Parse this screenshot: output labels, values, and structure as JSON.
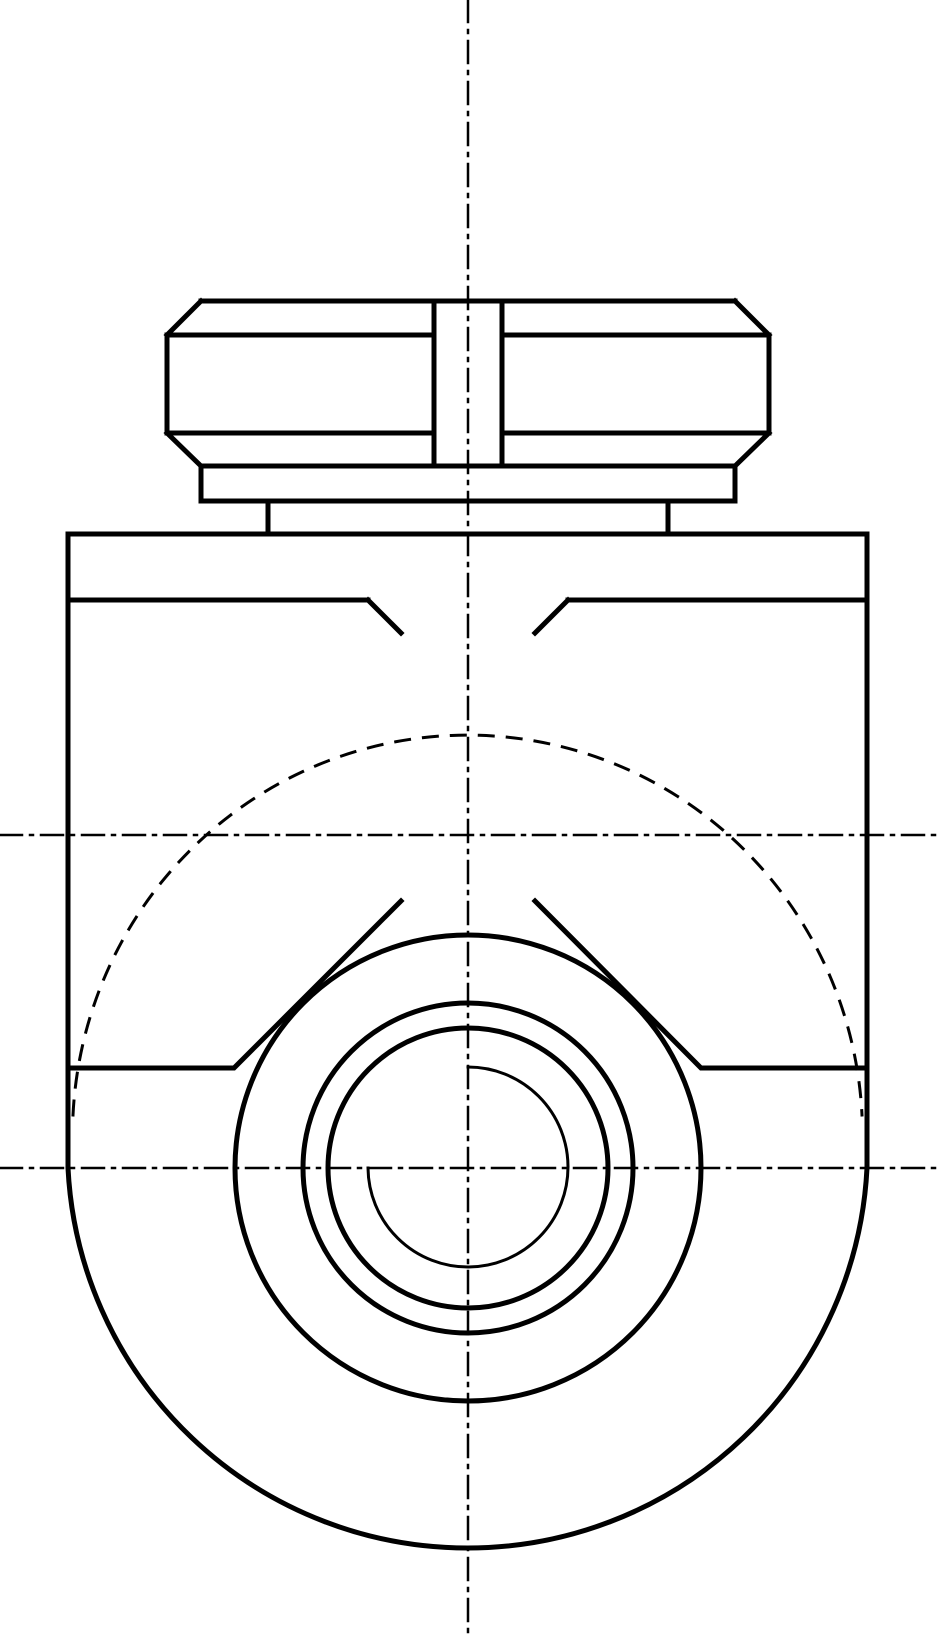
{
  "drawing": {
    "kind": "technical-drawing",
    "view": "front elevation",
    "stroke_color": "#000000",
    "background_color": "#ffffff",
    "printed_text": []
  }
}
